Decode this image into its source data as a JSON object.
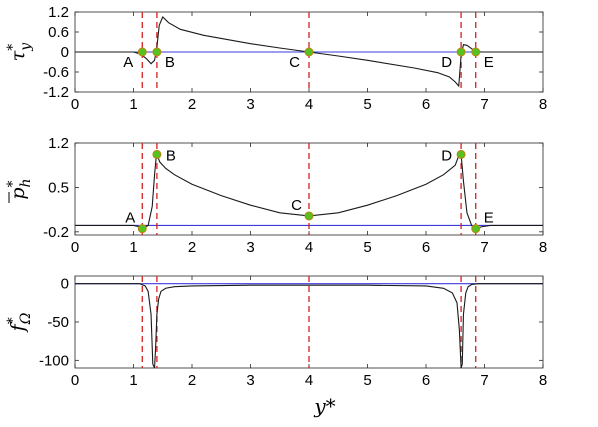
{
  "chart_data": {
    "type": "line",
    "xlabel": "y*",
    "xlim": [
      0,
      8
    ],
    "xticks": [
      "0",
      "1",
      "2",
      "3",
      "4",
      "5",
      "6",
      "7",
      "8"
    ],
    "vlines": [
      1.15,
      1.4,
      4.0,
      6.6,
      6.85
    ],
    "colors": {
      "curve": "#1a1a1a",
      "baseline": "#3b3bdc",
      "vline": "#d42020",
      "marker_fill": "#55c21f",
      "marker_edge": "#c0840e"
    },
    "panels": [
      {
        "ylabel_main": "τ",
        "ylabel_sup": "*",
        "ylabel_sub": "y",
        "ylim": [
          -1.2,
          1.2
        ],
        "yticks": [
          {
            "value": 1.2,
            "label": "1.2"
          },
          {
            "value": 0.6,
            "label": "0.6"
          },
          {
            "value": 0,
            "label": "0"
          },
          {
            "value": -0.6,
            "label": "-0.6"
          },
          {
            "value": -1.2,
            "label": "-1.2"
          }
        ],
        "baseline": 0,
        "series": [
          {
            "x": [
              0,
              1.0,
              1.1,
              1.15,
              1.22,
              1.3,
              1.36,
              1.4,
              1.44,
              1.5,
              1.6,
              1.8,
              2.2,
              3.0,
              3.5,
              4.0,
              4.5,
              5.0,
              5.8,
              6.2,
              6.4,
              6.5,
              6.56,
              6.6,
              6.64,
              6.7,
              6.78,
              6.85,
              6.95,
              7.1,
              8.0
            ],
            "y": [
              0,
              0,
              -0.05,
              -0.1,
              -0.2,
              -0.35,
              -0.25,
              0.15,
              0.8,
              1.05,
              0.88,
              0.68,
              0.5,
              0.25,
              0.12,
              0,
              -0.12,
              -0.25,
              -0.48,
              -0.62,
              -0.75,
              -0.9,
              -1.02,
              -0.1,
              0.22,
              0.2,
              0.1,
              0.02,
              0,
              0,
              0
            ]
          }
        ],
        "points": [
          {
            "label": "A",
            "x": 1.15,
            "y": 0,
            "label_pos": "below-left"
          },
          {
            "label": "B",
            "x": 1.4,
            "y": 0,
            "label_pos": "below-right"
          },
          {
            "label": "C",
            "x": 4.0,
            "y": 0,
            "label_pos": "below-left"
          },
          {
            "label": "D",
            "x": 6.6,
            "y": 0,
            "label_pos": "below-left"
          },
          {
            "label": "E",
            "x": 6.85,
            "y": 0,
            "label_pos": "below-right"
          }
        ]
      },
      {
        "ylabel_main": "p",
        "ylabel_sup": "*",
        "ylabel_sub": "h",
        "ylabel_overbar": true,
        "ylim": [
          -0.25,
          1.2
        ],
        "yticks": [
          {
            "value": 1.2,
            "label": "1.2"
          },
          {
            "value": 0.5,
            "label": "0.5"
          },
          {
            "value": -0.2,
            "label": "-0.2"
          }
        ],
        "baseline": -0.1,
        "series": [
          {
            "x": [
              0,
              1.0,
              1.1,
              1.15,
              1.25,
              1.32,
              1.36,
              1.39,
              1.4,
              1.45,
              1.55,
              1.7,
              2.0,
              2.5,
              3.0,
              3.5,
              4.0,
              4.5,
              5.0,
              5.5,
              6.0,
              6.3,
              6.5,
              6.56,
              6.6,
              6.64,
              6.7,
              6.78,
              6.85,
              6.95,
              7.1,
              8.0
            ],
            "y": [
              -0.1,
              -0.1,
              -0.12,
              -0.15,
              -0.1,
              0.2,
              0.7,
              1.0,
              1.02,
              0.9,
              0.8,
              0.7,
              0.55,
              0.37,
              0.22,
              0.1,
              0.05,
              0.1,
              0.22,
              0.37,
              0.55,
              0.7,
              0.85,
              1.0,
              1.02,
              0.6,
              0.1,
              -0.1,
              -0.15,
              -0.12,
              -0.1,
              -0.1
            ]
          }
        ],
        "points": [
          {
            "label": "A",
            "x": 1.15,
            "y": -0.15,
            "label_pos": "above-left"
          },
          {
            "label": "B",
            "x": 1.4,
            "y": 1.02,
            "label_pos": "right"
          },
          {
            "label": "C",
            "x": 4.0,
            "y": 0.05,
            "label_pos": "above-left"
          },
          {
            "label": "D",
            "x": 6.6,
            "y": 1.02,
            "label_pos": "left"
          },
          {
            "label": "E",
            "x": 6.85,
            "y": -0.15,
            "label_pos": "above-right"
          }
        ]
      },
      {
        "ylabel_main": "f",
        "ylabel_sup": "*",
        "ylabel_sub": "Ω",
        "ylim": [
          -110,
          10
        ],
        "yticks": [
          {
            "value": 0,
            "label": "0"
          },
          {
            "value": -50,
            "label": "-50"
          },
          {
            "value": -100,
            "label": "-100"
          }
        ],
        "baseline": 0,
        "series": [
          {
            "x": [
              0,
              1.1,
              1.2,
              1.25,
              1.3,
              1.33,
              1.36,
              1.38,
              1.4,
              1.43,
              1.47,
              1.55,
              1.7,
              2.0,
              3.0,
              4.0,
              5.0,
              6.0,
              6.3,
              6.45,
              6.53,
              6.57,
              6.6,
              6.62,
              6.64,
              6.68,
              6.72,
              6.78,
              6.9,
              8.0
            ],
            "y": [
              0,
              0,
              -3,
              -10,
              -40,
              -105,
              -110,
              -80,
              -40,
              -20,
              -10,
              -6,
              -4,
              -3,
              -2,
              -2,
              -2,
              -3,
              -6,
              -12,
              -25,
              -60,
              -110,
              -105,
              -40,
              -12,
              -4,
              -1,
              0,
              0
            ]
          }
        ],
        "points": []
      }
    ]
  }
}
